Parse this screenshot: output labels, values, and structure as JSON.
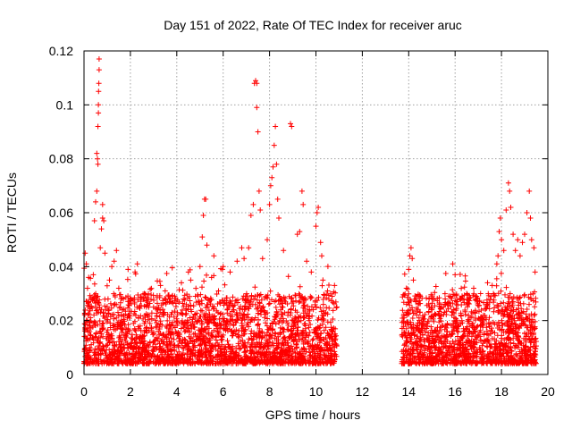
{
  "chart_data": {
    "type": "scatter",
    "title": "Day 151 of 2022, Rate Of TEC Index for receiver aruc",
    "xlabel": "GPS time / hours",
    "ylabel": "ROTI / TECUs",
    "xlim": [
      0,
      20
    ],
    "ylim": [
      0,
      0.12
    ],
    "x_ticks": [
      0,
      2,
      4,
      6,
      8,
      10,
      12,
      14,
      16,
      18,
      20
    ],
    "x_tick_labels": [
      "0",
      "2",
      "4",
      "6",
      "8",
      "10",
      "12",
      "14",
      "16",
      "18",
      "20"
    ],
    "y_ticks": [
      0,
      0.02,
      0.04,
      0.06,
      0.08,
      0.1,
      0.12
    ],
    "y_tick_labels": [
      "0",
      "0.02",
      "0.04",
      "0.06",
      "0.08",
      "0.1",
      "0.12"
    ],
    "grid": true,
    "marker": "+",
    "series": [
      {
        "color": "#ff0000",
        "points": [
          [
            0.05,
            0.045
          ],
          [
            0.1,
            0.041
          ],
          [
            0.15,
            0.032
          ],
          [
            0.2,
            0.036
          ],
          [
            0.3,
            0.028
          ],
          [
            0.4,
            0.037
          ],
          [
            0.45,
            0.057
          ],
          [
            0.5,
            0.064
          ],
          [
            0.55,
            0.068
          ],
          [
            0.55,
            0.082
          ],
          [
            0.58,
            0.08
          ],
          [
            0.6,
            0.078
          ],
          [
            0.6,
            0.092
          ],
          [
            0.62,
            0.097
          ],
          [
            0.62,
            0.1
          ],
          [
            0.63,
            0.105
          ],
          [
            0.64,
            0.108
          ],
          [
            0.65,
            0.113
          ],
          [
            0.65,
            0.117
          ],
          [
            0.7,
            0.047
          ],
          [
            0.75,
            0.054
          ],
          [
            0.8,
            0.058
          ],
          [
            0.8,
            0.063
          ],
          [
            0.85,
            0.057
          ],
          [
            0.9,
            0.045
          ],
          [
            1.1,
            0.035
          ],
          [
            1.2,
            0.04
          ],
          [
            1.3,
            0.042
          ],
          [
            1.4,
            0.046
          ],
          [
            1.5,
            0.032
          ],
          [
            1.7,
            0.028
          ],
          [
            1.9,
            0.039
          ],
          [
            2.2,
            0.038
          ],
          [
            2.3,
            0.041
          ],
          [
            2.6,
            0.03
          ],
          [
            3.0,
            0.025
          ],
          [
            3.3,
            0.033
          ],
          [
            3.5,
            0.031
          ],
          [
            3.8,
            0.029
          ],
          [
            4.2,
            0.034
          ],
          [
            4.5,
            0.038
          ],
          [
            4.6,
            0.035
          ],
          [
            4.8,
            0.029
          ],
          [
            5.0,
            0.04
          ],
          [
            5.1,
            0.051
          ],
          [
            5.15,
            0.059
          ],
          [
            5.2,
            0.065
          ],
          [
            5.25,
            0.065
          ],
          [
            5.3,
            0.048
          ],
          [
            5.5,
            0.036
          ],
          [
            5.6,
            0.044
          ],
          [
            5.8,
            0.031
          ],
          [
            6.0,
            0.04
          ],
          [
            6.3,
            0.038
          ],
          [
            6.6,
            0.042
          ],
          [
            6.8,
            0.047
          ],
          [
            6.9,
            0.043
          ],
          [
            7.1,
            0.047
          ],
          [
            7.2,
            0.059
          ],
          [
            7.3,
            0.063
          ],
          [
            7.35,
            0.108
          ],
          [
            7.4,
            0.109
          ],
          [
            7.45,
            0.108
          ],
          [
            7.45,
            0.099
          ],
          [
            7.5,
            0.09
          ],
          [
            7.55,
            0.068
          ],
          [
            7.6,
            0.061
          ],
          [
            7.7,
            0.043
          ],
          [
            7.9,
            0.05
          ],
          [
            8.0,
            0.063
          ],
          [
            8.05,
            0.07
          ],
          [
            8.1,
            0.073
          ],
          [
            8.15,
            0.077
          ],
          [
            8.2,
            0.085
          ],
          [
            8.25,
            0.092
          ],
          [
            8.3,
            0.078
          ],
          [
            8.35,
            0.065
          ],
          [
            8.4,
            0.058
          ],
          [
            8.6,
            0.046
          ],
          [
            8.9,
            0.093
          ],
          [
            8.95,
            0.092
          ],
          [
            9.2,
            0.052
          ],
          [
            9.3,
            0.053
          ],
          [
            9.4,
            0.068
          ],
          [
            9.45,
            0.063
          ],
          [
            9.6,
            0.042
          ],
          [
            9.8,
            0.038
          ],
          [
            10.0,
            0.055
          ],
          [
            10.05,
            0.06
          ],
          [
            10.1,
            0.062
          ],
          [
            10.2,
            0.049
          ],
          [
            10.25,
            0.044
          ],
          [
            10.3,
            0.035
          ],
          [
            10.5,
            0.031
          ],
          [
            10.7,
            0.029
          ],
          [
            10.8,
            0.033
          ],
          [
            13.8,
            0.021
          ],
          [
            13.9,
            0.032
          ],
          [
            14.0,
            0.039
          ],
          [
            14.05,
            0.044
          ],
          [
            14.1,
            0.047
          ],
          [
            14.15,
            0.043
          ],
          [
            14.2,
            0.035
          ],
          [
            14.3,
            0.027
          ],
          [
            14.6,
            0.021
          ],
          [
            15.0,
            0.024
          ],
          [
            15.3,
            0.022
          ],
          [
            15.5,
            0.025
          ],
          [
            15.8,
            0.029
          ],
          [
            15.9,
            0.041
          ],
          [
            16.0,
            0.037
          ],
          [
            16.2,
            0.028
          ],
          [
            16.5,
            0.03
          ],
          [
            16.8,
            0.032
          ],
          [
            17.1,
            0.03
          ],
          [
            17.4,
            0.034
          ],
          [
            17.6,
            0.033
          ],
          [
            17.8,
            0.041
          ],
          [
            17.85,
            0.044
          ],
          [
            17.9,
            0.053
          ],
          [
            17.95,
            0.058
          ],
          [
            18.0,
            0.05
          ],
          [
            18.1,
            0.046
          ],
          [
            18.2,
            0.061
          ],
          [
            18.3,
            0.071
          ],
          [
            18.35,
            0.068
          ],
          [
            18.4,
            0.062
          ],
          [
            18.5,
            0.052
          ],
          [
            18.6,
            0.046
          ],
          [
            18.7,
            0.05
          ],
          [
            18.8,
            0.044
          ],
          [
            18.9,
            0.049
          ],
          [
            19.0,
            0.052
          ],
          [
            19.1,
            0.06
          ],
          [
            19.2,
            0.068
          ],
          [
            19.25,
            0.058
          ],
          [
            19.3,
            0.05
          ],
          [
            19.4,
            0.047
          ],
          [
            19.45,
            0.038
          ]
        ],
        "dense_segments": [
          {
            "x_range": [
              0.0,
              10.9
            ],
            "y_range": [
              0.004,
              0.03
            ],
            "count": 2600
          },
          {
            "x_range": [
              13.7,
              19.5
            ],
            "y_range": [
              0.004,
              0.03
            ],
            "count": 1500
          }
        ]
      }
    ]
  }
}
